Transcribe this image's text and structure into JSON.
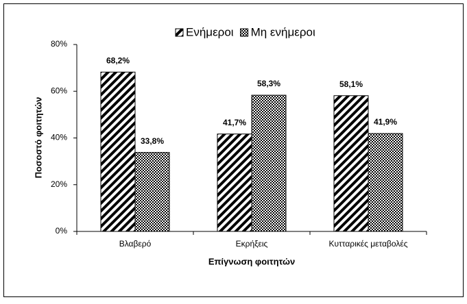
{
  "chart_data": {
    "type": "bar",
    "categories": [
      "Βλαβερό",
      "Εκρήξεις",
      "Κυτταρικές μεταβολές"
    ],
    "series": [
      {
        "name": "Ενήμεροι",
        "color": "#000000",
        "values": [
          68.2,
          41.7,
          58.1
        ],
        "value_labels": [
          "68,2%",
          "41,7%",
          "58,1%"
        ]
      },
      {
        "name": "Μη ενήμεροι",
        "color": "#000000",
        "values": [
          33.8,
          58.3,
          41.9
        ],
        "value_labels": [
          "33,8%",
          "58,3%",
          "41,9%"
        ]
      }
    ],
    "y_label": "Ποσοστό φοιτητών",
    "x_label": "Επίγνωση φοιτητών",
    "ylim": [
      0,
      80
    ],
    "yticks": [
      {
        "value": 0,
        "label": "0%"
      },
      {
        "value": 20,
        "label": "20%"
      },
      {
        "value": 40,
        "label": "40%"
      },
      {
        "value": 60,
        "label": "60%"
      },
      {
        "value": 80,
        "label": "80%"
      }
    ],
    "grid": false,
    "legend": "top"
  }
}
